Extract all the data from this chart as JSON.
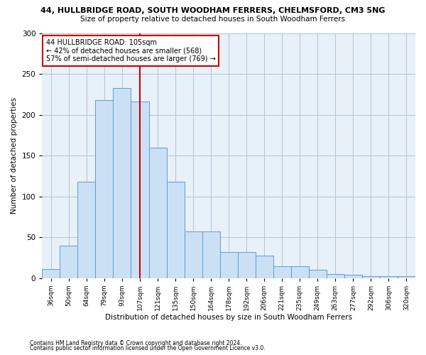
{
  "title1": "44, HULLBRIDGE ROAD, SOUTH WOODHAM FERRERS, CHELMSFORD, CM3 5NG",
  "title2": "Size of property relative to detached houses in South Woodham Ferrers",
  "xlabel": "Distribution of detached houses by size in South Woodham Ferrers",
  "ylabel": "Number of detached properties",
  "categories": [
    "36sqm",
    "50sqm",
    "64sqm",
    "79sqm",
    "93sqm",
    "107sqm",
    "121sqm",
    "135sqm",
    "150sqm",
    "164sqm",
    "178sqm",
    "192sqm",
    "206sqm",
    "221sqm",
    "235sqm",
    "249sqm",
    "263sqm",
    "277sqm",
    "292sqm",
    "306sqm",
    "320sqm"
  ],
  "values": [
    11,
    40,
    118,
    218,
    233,
    216,
    160,
    118,
    57,
    57,
    32,
    32,
    27,
    14,
    14,
    10,
    5,
    4,
    2,
    2,
    2
  ],
  "bar_color": "#cce0f5",
  "bar_edge_color": "#5b9bd5",
  "vline_x": 5,
  "annotation_line1": "44 HULLBRIDGE ROAD: 105sqm",
  "annotation_line2": "← 42% of detached houses are smaller (568)",
  "annotation_line3": "57% of semi-detached houses are larger (769) →",
  "annotation_box_color": "#ffffff",
  "annotation_box_edge": "#cc0000",
  "vline_color": "#cc0000",
  "ylim": [
    0,
    300
  ],
  "yticks": [
    0,
    50,
    100,
    150,
    200,
    250,
    300
  ],
  "grid_color": "#b0c4d8",
  "background_color": "#e8f0f8",
  "footnote1": "Contains HM Land Registry data © Crown copyright and database right 2024.",
  "footnote2": "Contains public sector information licensed under the Open Government Licence v3.0."
}
